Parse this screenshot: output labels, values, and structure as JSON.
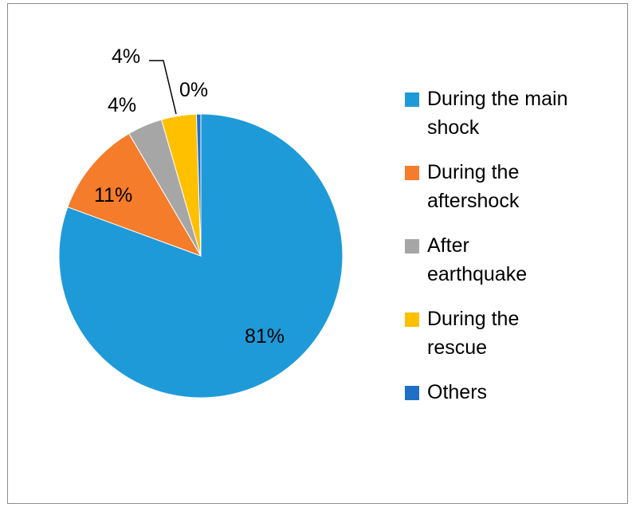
{
  "chart_data": {
    "type": "pie",
    "slices": [
      {
        "label": "During the main shock",
        "value": 81,
        "data_label": "81%",
        "color": "#1f9ad8"
      },
      {
        "label": "During the aftershock",
        "value": 11,
        "data_label": "11%",
        "color": "#f47c2a"
      },
      {
        "label": "After earthquake",
        "value": 4,
        "data_label": "4%",
        "color": "#a6a6a6"
      },
      {
        "label": "During the rescue",
        "value": 4,
        "data_label": "4%",
        "color": "#ffc000"
      },
      {
        "label": "Others",
        "value": 0.5,
        "data_label": "0%",
        "color": "#1f6fc6"
      }
    ],
    "legend_position": "right"
  },
  "legend": {
    "items": [
      {
        "text_1": "During the main",
        "text_2": "shock",
        "color": "#1f9ad8"
      },
      {
        "text_1": "During the",
        "text_2": "aftershock",
        "color": "#f47c2a"
      },
      {
        "text_1": "After",
        "text_2": "earthquake",
        "color": "#a6a6a6"
      },
      {
        "text_1": "During the",
        "text_2": "rescue",
        "color": "#ffc000"
      },
      {
        "text_1": "Others",
        "text_2": "",
        "color": "#1f6fc6"
      }
    ]
  }
}
